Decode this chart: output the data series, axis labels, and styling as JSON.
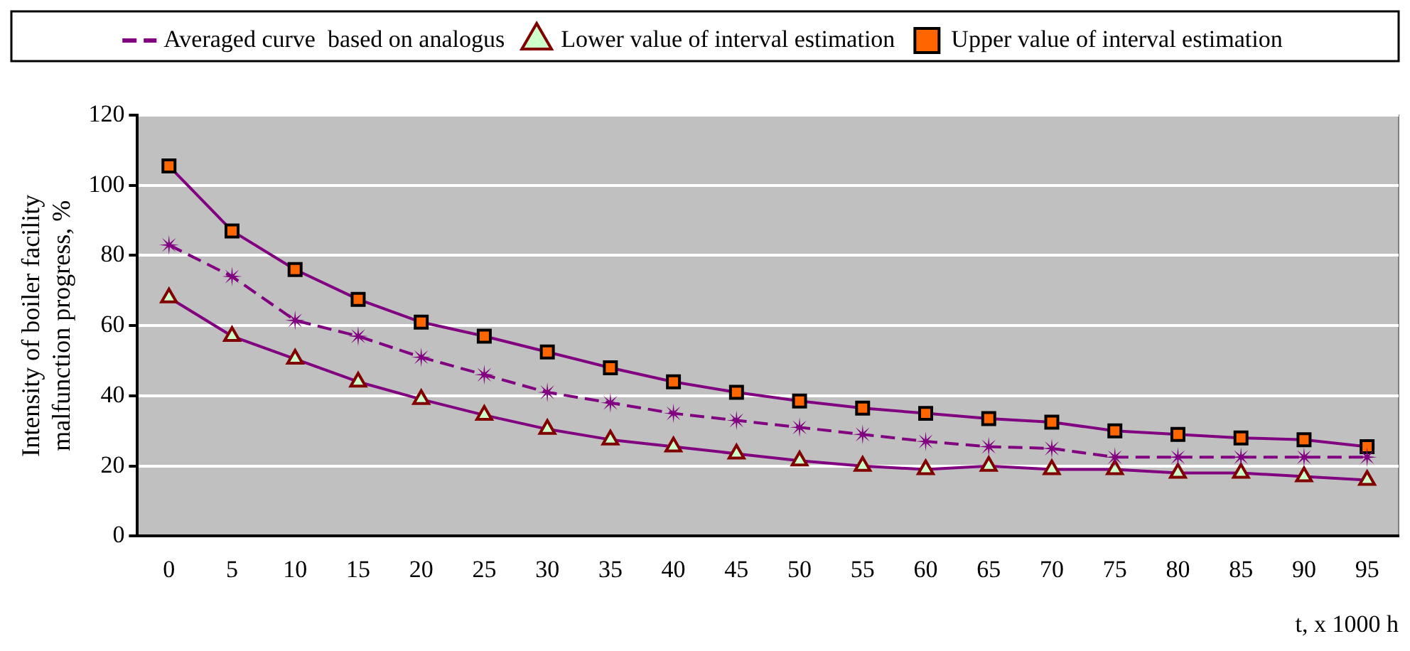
{
  "chart_data": {
    "type": "line",
    "xlabel": "t, x 1000 h",
    "ylabel": "Intensity of boiler facility malfunction progress, %",
    "categories": [
      "0",
      "5",
      "10",
      "15",
      "20",
      "25",
      "30",
      "35",
      "40",
      "45",
      "50",
      "55",
      "60",
      "65",
      "70",
      "75",
      "80",
      "85",
      "90",
      "95"
    ],
    "series": [
      {
        "name": "Averaged curve  based on analogus",
        "color": "#800080",
        "marker": "star",
        "line_style": "dashed",
        "values": [
          83,
          74,
          61.5,
          57,
          51,
          46,
          41,
          38,
          35,
          33,
          31,
          29,
          27,
          25.5,
          25,
          22.5,
          22.5,
          22.5,
          22.5,
          22.5
        ]
      },
      {
        "name": "Lower value of interval estimation",
        "color": "#800080",
        "marker": "triangle",
        "values": [
          68,
          57,
          50.5,
          44,
          39,
          34.5,
          30.5,
          27.5,
          25.5,
          23.5,
          21.5,
          20,
          19,
          20,
          19,
          19,
          18,
          18,
          17,
          16
        ]
      },
      {
        "name": "Upper value of interval estimation",
        "color": "#800080",
        "marker": "square",
        "values": [
          105.5,
          87,
          76,
          67.5,
          61,
          57,
          52.5,
          48,
          44,
          41,
          38.5,
          36.5,
          35,
          33.5,
          32.5,
          30,
          29,
          28,
          27.5,
          25.5
        ]
      }
    ],
    "ylim": [
      0,
      120
    ],
    "yticks": [
      0,
      20,
      40,
      60,
      80,
      100,
      120
    ],
    "grid": "y",
    "legend": "top"
  }
}
